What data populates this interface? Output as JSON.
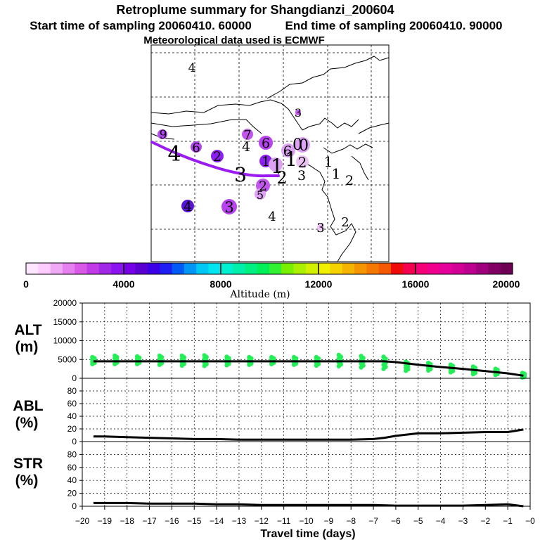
{
  "titles": {
    "main": "Retroplume summary for Shangdianzi_200604",
    "start": "Start time of sampling 20060410. 60000",
    "end": "End time of sampling 20060410. 90000",
    "met": "Meteorological data used is ECMWF"
  },
  "colorbar": {
    "labels": [
      "0",
      "4000",
      "8000",
      "12000",
      "16000",
      "20000"
    ],
    "title": "Altitude (m)",
    "colors": [
      "#ffe6ff",
      "#ffccff",
      "#f0aaf5",
      "#e680f0",
      "#d95ae6",
      "#c03ce6",
      "#a028e6",
      "#8c14f0",
      "#7800e6",
      "#5a00d2",
      "#3c00e6",
      "#1e1ef5",
      "#005af5",
      "#0096f5",
      "#00c8f5",
      "#00e6f0",
      "#00f0d2",
      "#00f0aa",
      "#00f082",
      "#00f05a",
      "#32f032",
      "#78f000",
      "#aaf000",
      "#d2f000",
      "#f0f000",
      "#f5d200",
      "#f5b400",
      "#f59600",
      "#f57800",
      "#f55a00",
      "#f00a0a",
      "#f50050",
      "#f50078",
      "#f0008c",
      "#e6009b",
      "#d20096",
      "#be0091",
      "#a0007d",
      "#820064",
      "#6e0055"
    ]
  },
  "map": {
    "labels": [
      {
        "t": "4"
      },
      {
        "t": "3"
      },
      {
        "t": "9"
      },
      {
        "t": "4"
      },
      {
        "t": "6"
      },
      {
        "t": "2"
      },
      {
        "t": "7"
      },
      {
        "t": "4"
      },
      {
        "t": "6"
      },
      {
        "t": "1"
      },
      {
        "t": "6"
      },
      {
        "t": "0"
      },
      {
        "t": "0"
      },
      {
        "t": "1"
      },
      {
        "t": "1"
      },
      {
        "t": "2"
      },
      {
        "t": "3"
      },
      {
        "t": "2"
      },
      {
        "t": "3"
      },
      {
        "t": "1"
      },
      {
        "t": "1"
      },
      {
        "t": "2"
      },
      {
        "t": "2"
      },
      {
        "t": "5"
      },
      {
        "t": "4"
      },
      {
        "t": "3"
      },
      {
        "t": "4"
      },
      {
        "t": "3"
      },
      {
        "t": "2"
      }
    ]
  },
  "panels": {
    "alt": {
      "label1": "ALT",
      "label2": "(m)"
    },
    "abl": {
      "label1": "ABL",
      "label2": "(%)"
    },
    "str": {
      "label1": "STR",
      "label2": "(%)"
    },
    "xlabel": "Travel time (days)"
  },
  "chart_data": [
    {
      "type": "line",
      "title": "ALT (m)",
      "ylabel": "ALT (m)",
      "ylim": [
        0,
        20000
      ],
      "yticks": [
        "0",
        "5000",
        "10000",
        "15000",
        "20000"
      ],
      "x": [
        -19.5,
        -19,
        -18,
        -17,
        -16,
        -15,
        -14,
        -13,
        -12,
        -11,
        -10,
        -9,
        -8,
        -7,
        -6.5,
        -6,
        -5,
        -4,
        -3,
        -2,
        -1,
        -0.3
      ],
      "values": [
        4500,
        4500,
        4500,
        4500,
        4500,
        4500,
        4500,
        4500,
        4500,
        4500,
        4500,
        4500,
        4500,
        4500,
        4500,
        4300,
        3600,
        3000,
        2500,
        1900,
        1300,
        700
      ],
      "scatter": {
        "color": "#22ee55",
        "x": [
          -19.5,
          -18.5,
          -17.5,
          -16.5,
          -15.5,
          -14.5,
          -13.5,
          -12.5,
          -11.5,
          -10.5,
          -9.5,
          -8.5,
          -7.5,
          -6.5,
          -5.5,
          -4.5,
          -3.5,
          -2.5,
          -1.5,
          -0.3
        ],
        "center": [
          4700,
          4900,
          4800,
          4800,
          4700,
          4700,
          4600,
          4600,
          4700,
          4600,
          4500,
          4700,
          4400,
          4100,
          3200,
          3100,
          2600,
          2100,
          1700,
          800
        ],
        "spread": [
          900,
          1100,
          1000,
          1200,
          1300,
          1400,
          1100,
          1000,
          900,
          1000,
          1100,
          1500,
          1500,
          1600,
          1200,
          1000,
          1000,
          1000,
          800,
          600
        ]
      }
    },
    {
      "type": "line",
      "title": "ABL (%)",
      "ylabel": "ABL (%)",
      "ylim": [
        0,
        100
      ],
      "yticks": [
        "0",
        "20",
        "40",
        "60",
        "80"
      ],
      "x": [
        -19.5,
        -19,
        -18,
        -17,
        -16,
        -15,
        -14,
        -13,
        -12,
        -11,
        -10,
        -9,
        -8,
        -7,
        -6.5,
        -6,
        -5,
        -4,
        -3,
        -2,
        -1,
        -0.3
      ],
      "values": [
        8,
        8,
        7,
        6,
        5,
        4,
        4,
        3,
        3,
        3,
        3,
        3,
        3,
        4,
        6,
        9,
        13,
        13,
        14,
        15,
        15,
        19
      ]
    },
    {
      "type": "line",
      "title": "STR (%)",
      "ylabel": "STR (%)",
      "ylim": [
        0,
        100
      ],
      "yticks": [
        "0",
        "20",
        "40",
        "60",
        "80"
      ],
      "x": [
        -19.5,
        -19,
        -18,
        -17,
        -16,
        -15,
        -14,
        -13,
        -12,
        -11,
        -10,
        -9,
        -8,
        -7,
        -6,
        -5,
        -4,
        -3,
        -2,
        -1,
        -0.3
      ],
      "values": [
        5,
        5,
        5,
        4,
        4,
        4,
        3,
        3,
        2,
        2,
        2,
        2,
        2,
        2,
        1,
        1,
        1,
        1,
        2,
        3,
        0
      ]
    },
    {
      "type": "line",
      "title": "Travel time (days)",
      "xlabel": "Travel time (days)",
      "xticks": [
        "−20",
        "−19",
        "−18",
        "−17",
        "−16",
        "−15",
        "−14",
        "−13",
        "−12",
        "−11",
        "−10",
        "−9",
        "−8",
        "−7",
        "−6",
        "−5",
        "−4",
        "−3",
        "−2",
        "−1",
        "−0"
      ],
      "xlim": [
        -20,
        0
      ]
    }
  ]
}
